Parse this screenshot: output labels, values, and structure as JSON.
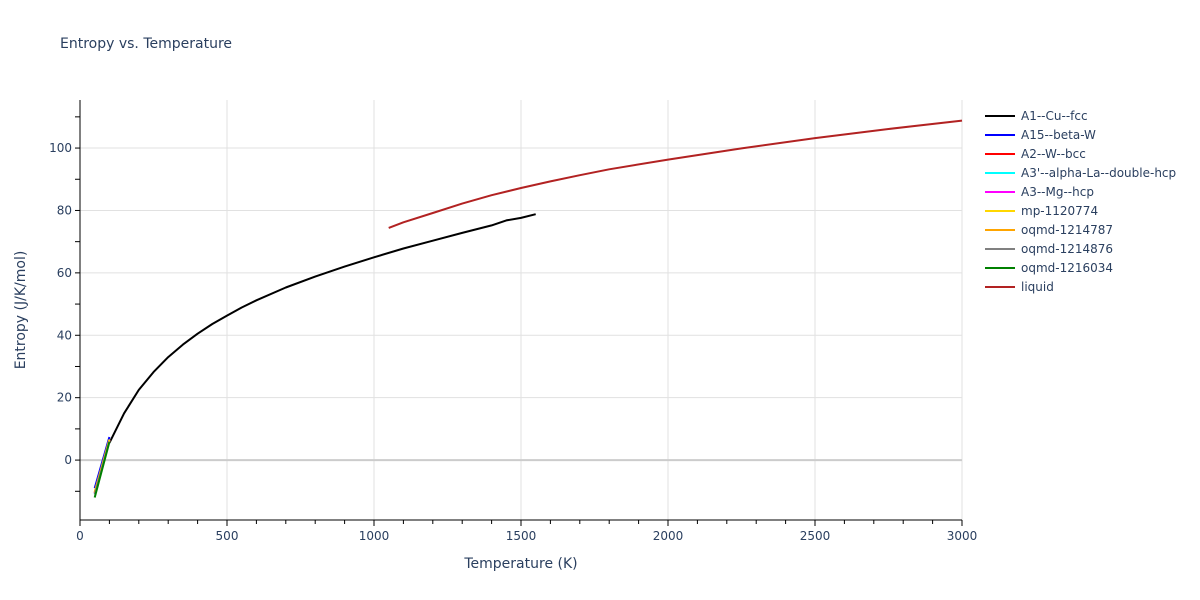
{
  "title": "Entropy vs. Temperature",
  "chart_data": {
    "type": "line",
    "title": "Entropy vs. Temperature",
    "xlabel": "Temperature (K)",
    "ylabel": "Entropy (J/K/mol)",
    "xlim": [
      0,
      3000
    ],
    "ylim": [
      -19.2,
      115.4
    ],
    "x_ticks": [
      0,
      500,
      1000,
      1500,
      2000,
      2500,
      3000
    ],
    "y_ticks": [
      0,
      20,
      40,
      60,
      80,
      100
    ],
    "grid": true,
    "legend_position": "right",
    "series": [
      {
        "name": "A1--Cu--fcc",
        "color": "#000000",
        "x": [
          100,
          150,
          200,
          250,
          300,
          350,
          400,
          450,
          500,
          550,
          600,
          700,
          800,
          900,
          1000,
          1100,
          1200,
          1300,
          1400,
          1450,
          1500,
          1550
        ],
        "y": [
          5.5,
          15.0,
          22.5,
          28.2,
          33.0,
          37.0,
          40.5,
          43.6,
          46.3,
          48.9,
          51.2,
          55.3,
          58.8,
          62.0,
          65.0,
          67.8,
          70.3,
          72.8,
          75.2,
          76.8,
          77.6,
          78.8
        ]
      },
      {
        "name": "A15--beta-W",
        "color": "#0000ff",
        "x": [
          50,
          100
        ],
        "y": [
          -9.0,
          7.4
        ]
      },
      {
        "name": "A2--W--bcc",
        "color": "#ff0000",
        "x": [
          50,
          100
        ],
        "y": [
          -10.5,
          6.5
        ]
      },
      {
        "name": "A3'--alpha-La--double-hcp",
        "color": "#00ffff",
        "x": [
          50,
          100
        ],
        "y": [
          -10.8,
          6.3
        ]
      },
      {
        "name": "A3--Mg--hcp",
        "color": "#ff00ff",
        "x": [
          50,
          100
        ],
        "y": [
          -10.6,
          6.4
        ]
      },
      {
        "name": "mp-1120774",
        "color": "#ffd700",
        "x": [
          50,
          100
        ],
        "y": [
          -10.2,
          6.6
        ]
      },
      {
        "name": "oqmd-1214787",
        "color": "#ffa500",
        "x": [
          50,
          100
        ],
        "y": [
          -10.4,
          6.2
        ]
      },
      {
        "name": "oqmd-1214876",
        "color": "#808080",
        "x": [
          50,
          100
        ],
        "y": [
          -11.0,
          6.0
        ]
      },
      {
        "name": "oqmd-1216034",
        "color": "#008000",
        "x": [
          50,
          100
        ],
        "y": [
          -12.0,
          5.8
        ]
      },
      {
        "name": "liquid",
        "color": "#b22222",
        "x": [
          1050,
          1100,
          1200,
          1300,
          1400,
          1500,
          1600,
          1700,
          1800,
          2000,
          2250,
          2500,
          2750,
          3000
        ],
        "y": [
          74.4,
          76.2,
          79.2,
          82.2,
          84.9,
          87.2,
          89.3,
          91.3,
          93.2,
          96.3,
          99.9,
          103.2,
          106.1,
          108.8
        ]
      }
    ]
  },
  "legend": [
    {
      "label": "A1--Cu--fcc",
      "color": "#000000"
    },
    {
      "label": "A15--beta-W",
      "color": "#0000ff"
    },
    {
      "label": "A2--W--bcc",
      "color": "#ff0000"
    },
    {
      "label": "A3'--alpha-La--double-hcp",
      "color": "#00ffff"
    },
    {
      "label": "A3--Mg--hcp",
      "color": "#ff00ff"
    },
    {
      "label": "mp-1120774",
      "color": "#ffd700"
    },
    {
      "label": "oqmd-1214787",
      "color": "#ffa500"
    },
    {
      "label": "oqmd-1214876",
      "color": "#808080"
    },
    {
      "label": "oqmd-1216034",
      "color": "#008000"
    },
    {
      "label": "liquid",
      "color": "#b22222"
    }
  ]
}
